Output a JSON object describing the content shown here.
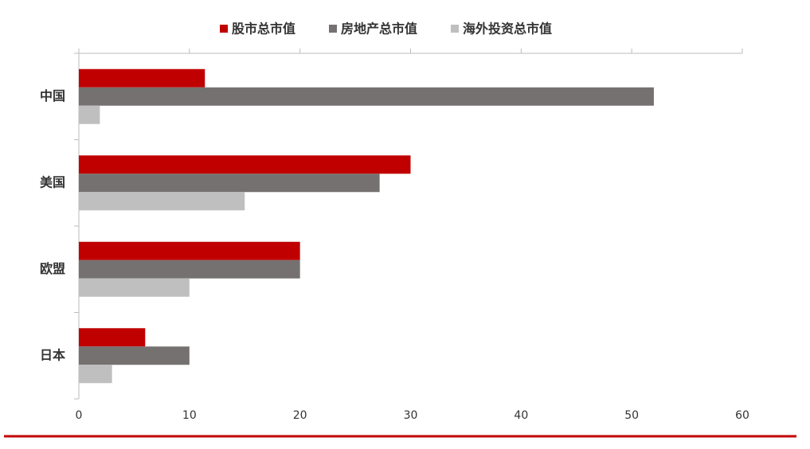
{
  "chart_data": {
    "type": "bar",
    "orientation": "horizontal",
    "categories": [
      "中国",
      "美国",
      "欧盟",
      "日本"
    ],
    "series": [
      {
        "name": "股市总市值",
        "color": "#c00000",
        "values": [
          11.4,
          30,
          20,
          6
        ]
      },
      {
        "name": "房地产总市值",
        "color": "#767171",
        "values": [
          52,
          27.2,
          20,
          10
        ]
      },
      {
        "name": "海外投资总市值",
        "color": "#bfbfbf",
        "values": [
          1.9,
          15,
          10,
          3
        ]
      }
    ],
    "xlim": [
      0,
      60
    ],
    "xticks": [
      0,
      10,
      20,
      30,
      40,
      50,
      60
    ],
    "legend": "top"
  }
}
